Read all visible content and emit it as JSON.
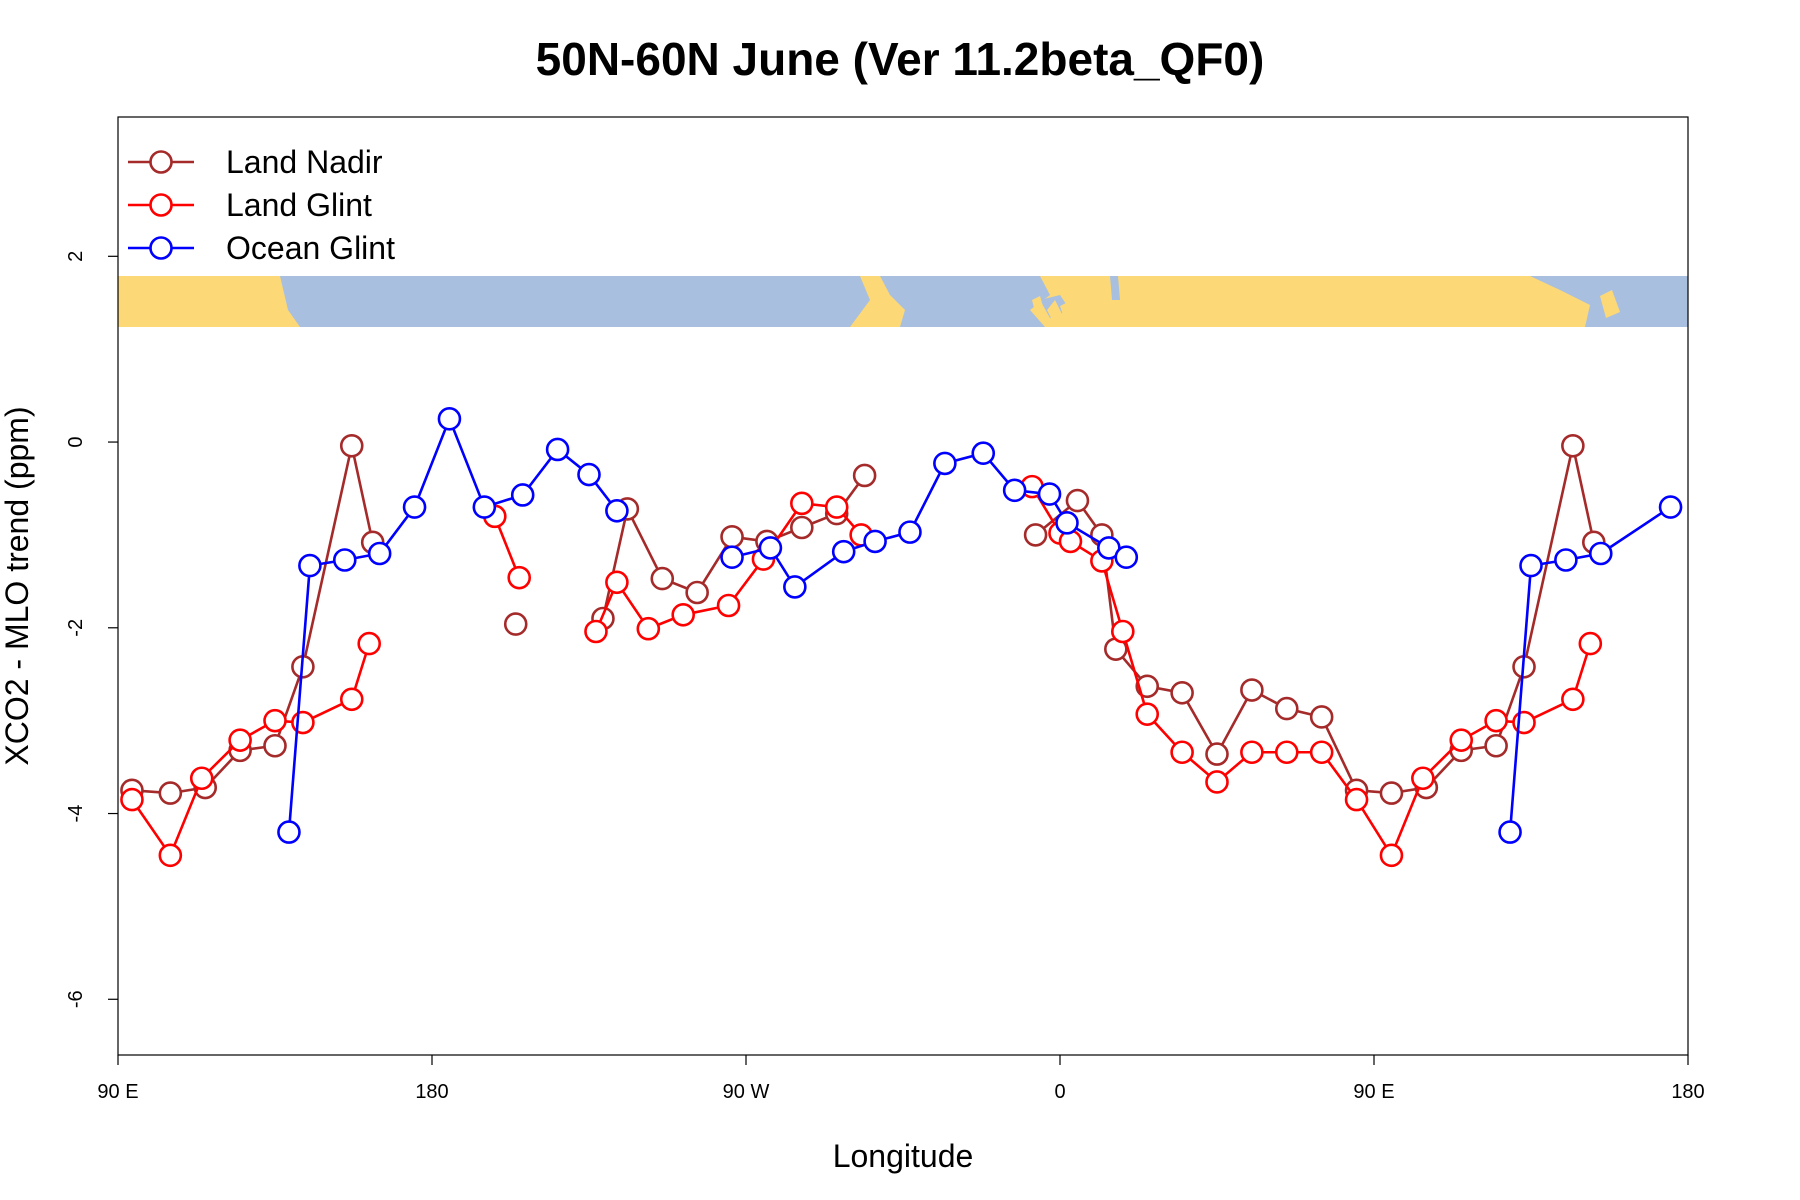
{
  "chart_data": {
    "type": "line",
    "title": "50N-60N June (Ver 11.2beta_QF0)",
    "xlabel": "Longitude",
    "ylabel": "XCO2 - MLO trend (ppm)",
    "xlim": [
      90,
      540
    ],
    "ylim": [
      -6.6,
      3.5
    ],
    "x_ticks": [
      {
        "value": 90,
        "label": "90 E"
      },
      {
        "value": 180,
        "label": "180"
      },
      {
        "value": 270,
        "label": "90 W"
      },
      {
        "value": 360,
        "label": "0"
      },
      {
        "value": 450,
        "label": "90 E"
      },
      {
        "value": 540,
        "label": "180"
      }
    ],
    "y_ticks": [
      {
        "value": 2,
        "label": "2"
      },
      {
        "value": 0,
        "label": "0"
      },
      {
        "value": -2,
        "label": "-2"
      },
      {
        "value": -4,
        "label": "-4"
      },
      {
        "value": -6,
        "label": "-6"
      }
    ],
    "legend_position": "top-left",
    "map_strip": {
      "y_range": [
        1.2,
        1.75
      ],
      "land_color": "#fcd877",
      "ocean_color": "#a9bfdf"
    },
    "series": [
      {
        "name": "Land Nadir",
        "color": "#a52a2a",
        "segments": [
          [
            [
              94,
              -3.75
            ],
            [
              105,
              -3.78
            ],
            [
              115,
              -3.72
            ],
            [
              125,
              -3.32
            ],
            [
              135,
              -3.27
            ],
            [
              143,
              -2.42
            ],
            [
              157,
              -0.04
            ],
            [
              163,
              -1.08
            ]
          ],
          [
            [
              204,
              -1.96
            ]
          ],
          [
            [
              229,
              -1.9
            ],
            [
              236,
              -0.72
            ],
            [
              246,
              -1.47
            ],
            [
              256,
              -1.62
            ],
            [
              266,
              -1.02
            ],
            [
              276,
              -1.07
            ],
            [
              286,
              -0.92
            ],
            [
              296,
              -0.77
            ],
            [
              304,
              -0.36
            ]
          ],
          [
            [
              353,
              -1.0
            ],
            [
              365,
              -0.63
            ],
            [
              372,
              -1.0
            ],
            [
              376,
              -2.23
            ],
            [
              385,
              -2.63
            ],
            [
              395,
              -2.7
            ],
            [
              405,
              -3.36
            ],
            [
              415,
              -2.67
            ],
            [
              425,
              -2.87
            ],
            [
              435,
              -2.96
            ],
            [
              445,
              -3.75
            ],
            [
              455,
              -3.78
            ],
            [
              465,
              -3.72
            ],
            [
              475,
              -3.32
            ],
            [
              485,
              -3.27
            ],
            [
              493,
              -2.42
            ],
            [
              507,
              -0.04
            ],
            [
              513,
              -1.08
            ]
          ]
        ]
      },
      {
        "name": "Land Glint",
        "color": "#ff0000",
        "segments": [
          [
            [
              94,
              -3.85
            ],
            [
              105,
              -4.45
            ],
            [
              114,
              -3.62
            ],
            [
              125,
              -3.21
            ],
            [
              135,
              -3.0
            ],
            [
              143,
              -3.02
            ],
            [
              157,
              -2.77
            ],
            [
              162,
              -2.17
            ]
          ],
          [
            [
              198,
              -0.8
            ],
            [
              205,
              -1.46
            ]
          ],
          [
            [
              227,
              -2.04
            ],
            [
              233,
              -1.51
            ],
            [
              242,
              -2.01
            ],
            [
              252,
              -1.86
            ],
            [
              265,
              -1.76
            ],
            [
              275,
              -1.26
            ],
            [
              286,
              -0.66
            ],
            [
              296,
              -0.7
            ],
            [
              303,
              -1.0
            ]
          ],
          [
            [
              352,
              -0.48
            ],
            [
              360,
              -0.98
            ],
            [
              363,
              -1.07
            ],
            [
              372,
              -1.28
            ],
            [
              378,
              -2.04
            ],
            [
              385,
              -2.93
            ],
            [
              395,
              -3.34
            ],
            [
              405,
              -3.66
            ],
            [
              415,
              -3.34
            ],
            [
              425,
              -3.34
            ],
            [
              435,
              -3.34
            ],
            [
              445,
              -3.85
            ],
            [
              455,
              -4.45
            ],
            [
              464,
              -3.62
            ],
            [
              475,
              -3.21
            ],
            [
              485,
              -3.0
            ],
            [
              493,
              -3.02
            ],
            [
              507,
              -2.77
            ],
            [
              512,
              -2.17
            ]
          ]
        ]
      },
      {
        "name": "Ocean Glint",
        "color": "#0000ff",
        "segments": [
          [
            [
              139,
              -4.2
            ],
            [
              145,
              -1.33
            ],
            [
              155,
              -1.27
            ],
            [
              165,
              -1.2
            ],
            [
              175,
              -0.7
            ],
            [
              185,
              0.25
            ],
            [
              195,
              -0.7
            ],
            [
              206,
              -0.57
            ],
            [
              216,
              -0.08
            ],
            [
              225,
              -0.35
            ],
            [
              233,
              -0.74
            ]
          ],
          [
            [
              266,
              -1.24
            ],
            [
              277,
              -1.14
            ],
            [
              284,
              -1.56
            ],
            [
              298,
              -1.18
            ],
            [
              307,
              -1.07
            ],
            [
              317,
              -0.97
            ],
            [
              327,
              -0.23
            ],
            [
              338,
              -0.12
            ],
            [
              347,
              -0.52
            ],
            [
              357,
              -0.56
            ],
            [
              362,
              -0.87
            ],
            [
              374,
              -1.14
            ],
            [
              379,
              -1.24
            ]
          ],
          [
            [
              489,
              -4.2
            ],
            [
              495,
              -1.33
            ],
            [
              505,
              -1.27
            ],
            [
              515,
              -1.2
            ],
            [
              535,
              -0.7
            ]
          ]
        ]
      }
    ]
  }
}
